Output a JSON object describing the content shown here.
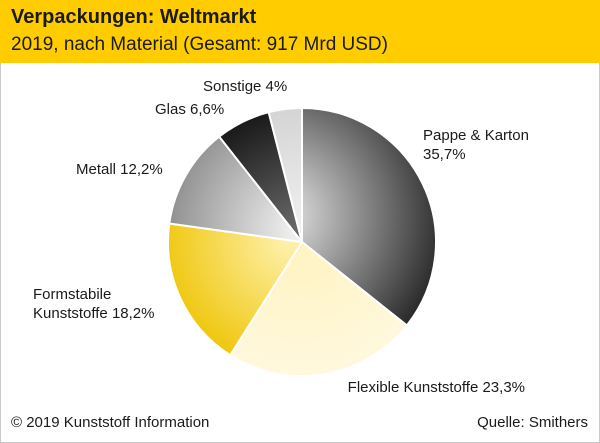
{
  "header": {
    "title": "Verpackungen: Weltmarkt",
    "subtitle": "2019, nach Material (Gesamt: 917 Mrd USD)"
  },
  "chart_data": {
    "type": "pie",
    "title": "Verpackungen: Weltmarkt",
    "subtitle": "2019, nach Material (Gesamt: 917 Mrd USD)",
    "unit": "%",
    "slices": [
      {
        "name": "Pappe & Karton",
        "value": 35.7,
        "label_lines": [
          "Pappe & Karton",
          "35,7%"
        ],
        "color": "#7a7a7a"
      },
      {
        "name": "Flexible Kunststoffe",
        "value": 23.3,
        "label_lines": [
          "Flexible Kunststoffe 23,3%"
        ],
        "color": "#fbe79a"
      },
      {
        "name": "Formstabile Kunststoffe",
        "value": 18.2,
        "label_lines": [
          "Formstabile",
          "Kunststoffe 18,2%"
        ],
        "color": "#f6d440"
      },
      {
        "name": "Metall",
        "value": 12.2,
        "label_lines": [
          "Metall 12,2%"
        ],
        "color": "#c8c8c8"
      },
      {
        "name": "Glas",
        "value": 6.6,
        "label_lines": [
          "Glas 6,6%"
        ],
        "color": "#262626"
      },
      {
        "name": "Sonstige",
        "value": 4.0,
        "label_lines": [
          "Sonstige 4%"
        ],
        "color": "#dadada"
      }
    ]
  },
  "footer": {
    "copyright": "© 2019 Kunststoff Information",
    "source": "Quelle: Smithers"
  }
}
